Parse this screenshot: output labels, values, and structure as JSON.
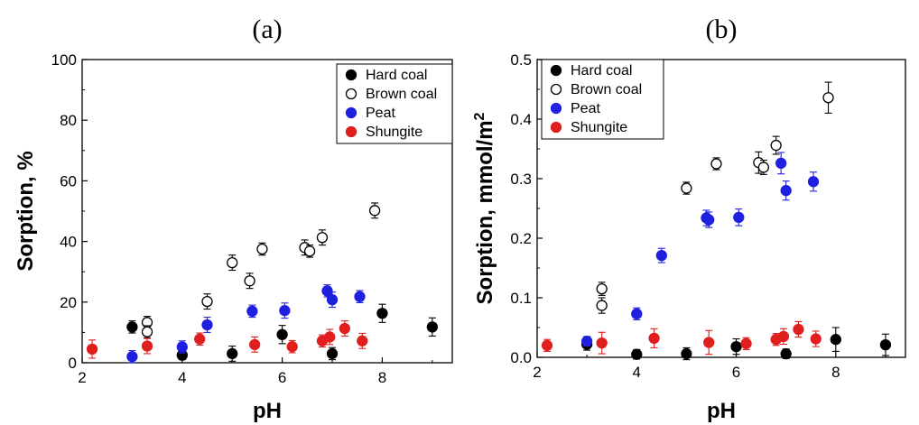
{
  "chart_data": [
    {
      "type": "scatter",
      "panel_label": "(a)",
      "xlabel": "pH",
      "ylabel": "Sorption, %",
      "xlim": [
        2,
        9.4
      ],
      "ylim": [
        0,
        100
      ],
      "x_ticks": [
        2,
        4,
        6,
        8
      ],
      "y_ticks": [
        0,
        20,
        40,
        60,
        80,
        100
      ],
      "legend_position": "top-right",
      "series": [
        {
          "name": "Hard coal",
          "marker": "filled-circle",
          "color": "#000000",
          "points": [
            {
              "x": 3.0,
              "y": 11.8,
              "err": 2.0
            },
            {
              "x": 4.0,
              "y": 2.5,
              "err": 1.5
            },
            {
              "x": 5.0,
              "y": 3.0,
              "err": 2.5
            },
            {
              "x": 6.0,
              "y": 9.3,
              "err": 3.0
            },
            {
              "x": 7.0,
              "y": 3.0,
              "err": 2.0
            },
            {
              "x": 8.0,
              "y": 16.3,
              "err": 3.0
            },
            {
              "x": 9.0,
              "y": 11.8,
              "err": 3.0
            }
          ]
        },
        {
          "name": "Brown coal",
          "marker": "open-circle",
          "color": "#000000",
          "points": [
            {
              "x": 3.3,
              "y": 13.3,
              "err": 2.0
            },
            {
              "x": 3.3,
              "y": 10.2,
              "err": 2.0
            },
            {
              "x": 4.5,
              "y": 20.2,
              "err": 2.5
            },
            {
              "x": 5.0,
              "y": 33.0,
              "err": 2.5
            },
            {
              "x": 5.35,
              "y": 27.0,
              "err": 2.5
            },
            {
              "x": 5.6,
              "y": 37.5,
              "err": 2.0
            },
            {
              "x": 6.45,
              "y": 38.0,
              "err": 2.5
            },
            {
              "x": 6.55,
              "y": 36.8,
              "err": 2.0
            },
            {
              "x": 6.8,
              "y": 41.3,
              "err": 2.5
            },
            {
              "x": 7.85,
              "y": 50.2,
              "err": 2.5
            }
          ]
        },
        {
          "name": "Peat",
          "marker": "filled-circle",
          "color": "#1f1fe0",
          "points": [
            {
              "x": 3.0,
              "y": 2.0,
              "err": 2.0
            },
            {
              "x": 4.0,
              "y": 5.2,
              "err": 2.0
            },
            {
              "x": 4.5,
              "y": 12.5,
              "err": 2.5
            },
            {
              "x": 5.4,
              "y": 17.0,
              "err": 2.0
            },
            {
              "x": 6.05,
              "y": 17.2,
              "err": 2.5
            },
            {
              "x": 6.9,
              "y": 23.7,
              "err": 2.0
            },
            {
              "x": 7.0,
              "y": 20.8,
              "err": 2.5
            },
            {
              "x": 7.55,
              "y": 21.8,
              "err": 2.0
            }
          ]
        },
        {
          "name": "Shungite",
          "marker": "filled-circle",
          "color": "#e01e1e",
          "points": [
            {
              "x": 2.2,
              "y": 4.5,
              "err": 3.0
            },
            {
              "x": 3.3,
              "y": 5.5,
              "err": 2.5
            },
            {
              "x": 4.35,
              "y": 7.8,
              "err": 2.0
            },
            {
              "x": 5.45,
              "y": 6.0,
              "err": 2.5
            },
            {
              "x": 6.2,
              "y": 5.3,
              "err": 2.0
            },
            {
              "x": 6.8,
              "y": 7.2,
              "err": 2.0
            },
            {
              "x": 6.95,
              "y": 8.5,
              "err": 2.5
            },
            {
              "x": 7.25,
              "y": 11.3,
              "err": 2.5
            },
            {
              "x": 7.6,
              "y": 7.2,
              "err": 2.5
            }
          ]
        }
      ]
    },
    {
      "type": "scatter",
      "panel_label": "(b)",
      "xlabel": "pH",
      "ylabel": "Sorption, mmol/m",
      "ylabel_superscript": "2",
      "xlim": [
        2,
        9.4
      ],
      "ylim": [
        0,
        0.5
      ],
      "x_ticks": [
        2,
        4,
        6,
        8
      ],
      "y_ticks": [
        0.0,
        0.1,
        0.2,
        0.3,
        0.4,
        0.5
      ],
      "y_tick_labels": [
        "0.0",
        "0.1",
        "0.2",
        "0.3",
        "0.4",
        "0.5"
      ],
      "legend_position": "top-left",
      "series": [
        {
          "name": "Hard coal",
          "marker": "filled-circle",
          "color": "#000000",
          "points": [
            {
              "x": 3.0,
              "y": 0.022,
              "err": 0.01
            },
            {
              "x": 4.0,
              "y": 0.005,
              "err": 0.008
            },
            {
              "x": 5.0,
              "y": 0.006,
              "err": 0.01
            },
            {
              "x": 6.0,
              "y": 0.018,
              "err": 0.013
            },
            {
              "x": 7.0,
              "y": 0.006,
              "err": 0.008
            },
            {
              "x": 8.0,
              "y": 0.03,
              "err": 0.02
            },
            {
              "x": 9.0,
              "y": 0.021,
              "err": 0.018
            }
          ]
        },
        {
          "name": "Brown coal",
          "marker": "open-circle",
          "color": "#000000",
          "points": [
            {
              "x": 3.3,
              "y": 0.115,
              "err": 0.011
            },
            {
              "x": 3.3,
              "y": 0.087,
              "err": 0.013
            },
            {
              "x": 5.0,
              "y": 0.284,
              "err": 0.01
            },
            {
              "x": 5.6,
              "y": 0.325,
              "err": 0.01
            },
            {
              "x": 6.45,
              "y": 0.327,
              "err": 0.018
            },
            {
              "x": 6.55,
              "y": 0.319,
              "err": 0.012
            },
            {
              "x": 6.8,
              "y": 0.356,
              "err": 0.015
            },
            {
              "x": 7.85,
              "y": 0.436,
              "err": 0.026
            }
          ]
        },
        {
          "name": "Peat",
          "marker": "filled-circle",
          "color": "#1f1fe0",
          "points": [
            {
              "x": 3.0,
              "y": 0.027,
              "err": 0.008
            },
            {
              "x": 4.0,
              "y": 0.073,
              "err": 0.01
            },
            {
              "x": 4.5,
              "y": 0.171,
              "err": 0.012
            },
            {
              "x": 5.4,
              "y": 0.234,
              "err": 0.013
            },
            {
              "x": 5.45,
              "y": 0.231,
              "err": 0.013
            },
            {
              "x": 6.05,
              "y": 0.235,
              "err": 0.014
            },
            {
              "x": 6.9,
              "y": 0.326,
              "err": 0.018
            },
            {
              "x": 7.0,
              "y": 0.28,
              "err": 0.016
            },
            {
              "x": 7.55,
              "y": 0.295,
              "err": 0.016
            }
          ]
        },
        {
          "name": "Shungite",
          "marker": "filled-circle",
          "color": "#e01e1e",
          "points": [
            {
              "x": 2.2,
              "y": 0.02,
              "err": 0.01
            },
            {
              "x": 3.3,
              "y": 0.024,
              "err": 0.018
            },
            {
              "x": 4.35,
              "y": 0.032,
              "err": 0.016
            },
            {
              "x": 5.45,
              "y": 0.025,
              "err": 0.02
            },
            {
              "x": 6.2,
              "y": 0.023,
              "err": 0.01
            },
            {
              "x": 6.8,
              "y": 0.03,
              "err": 0.01
            },
            {
              "x": 6.95,
              "y": 0.035,
              "err": 0.013
            },
            {
              "x": 7.25,
              "y": 0.047,
              "err": 0.013
            },
            {
              "x": 7.6,
              "y": 0.031,
              "err": 0.013
            }
          ]
        }
      ]
    }
  ]
}
